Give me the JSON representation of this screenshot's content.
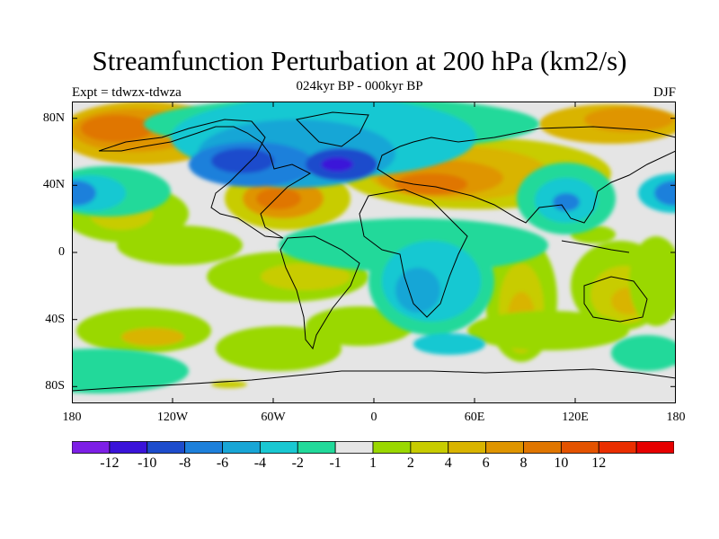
{
  "title": "Streamfunction Perturbation at 200 hPa (km2/s)",
  "subtitle": "024kyr BP - 000kyr BP",
  "left_note": "Expt = tdwzx-tdwza",
  "right_note": "DJF",
  "map": {
    "projection": "cylindrical equidistant",
    "lon_range": [
      -180,
      180
    ],
    "lat_range": [
      -90,
      90
    ],
    "lat_ticks": [
      {
        "value": 80,
        "label": "80N"
      },
      {
        "value": 40,
        "label": "40N"
      },
      {
        "value": 0,
        "label": "0"
      },
      {
        "value": -40,
        "label": "40S"
      },
      {
        "value": -80,
        "label": "80S"
      }
    ],
    "lon_ticks": [
      {
        "value": -180,
        "label": "180"
      },
      {
        "value": -120,
        "label": "120W"
      },
      {
        "value": -60,
        "label": "60W"
      },
      {
        "value": 0,
        "label": "0"
      },
      {
        "value": 60,
        "label": "60E"
      },
      {
        "value": 120,
        "label": "120E"
      },
      {
        "value": 180,
        "label": "180"
      }
    ]
  },
  "colorbar": {
    "colors": [
      "#7d1fe6",
      "#3a13d9",
      "#1d4ccc",
      "#1d80db",
      "#18a6d6",
      "#19c8d2",
      "#21d99a",
      "#e5e5e5",
      "#9ad800",
      "#c8cc00",
      "#d9b400",
      "#df9500",
      "#e07600",
      "#e45300",
      "#ea2e00",
      "#e60000"
    ],
    "labels": [
      "-12",
      "-10",
      "-8",
      "-6",
      "-4",
      "-2",
      "-1",
      "1",
      "2",
      "4",
      "6",
      "8",
      "10",
      "12"
    ]
  }
}
